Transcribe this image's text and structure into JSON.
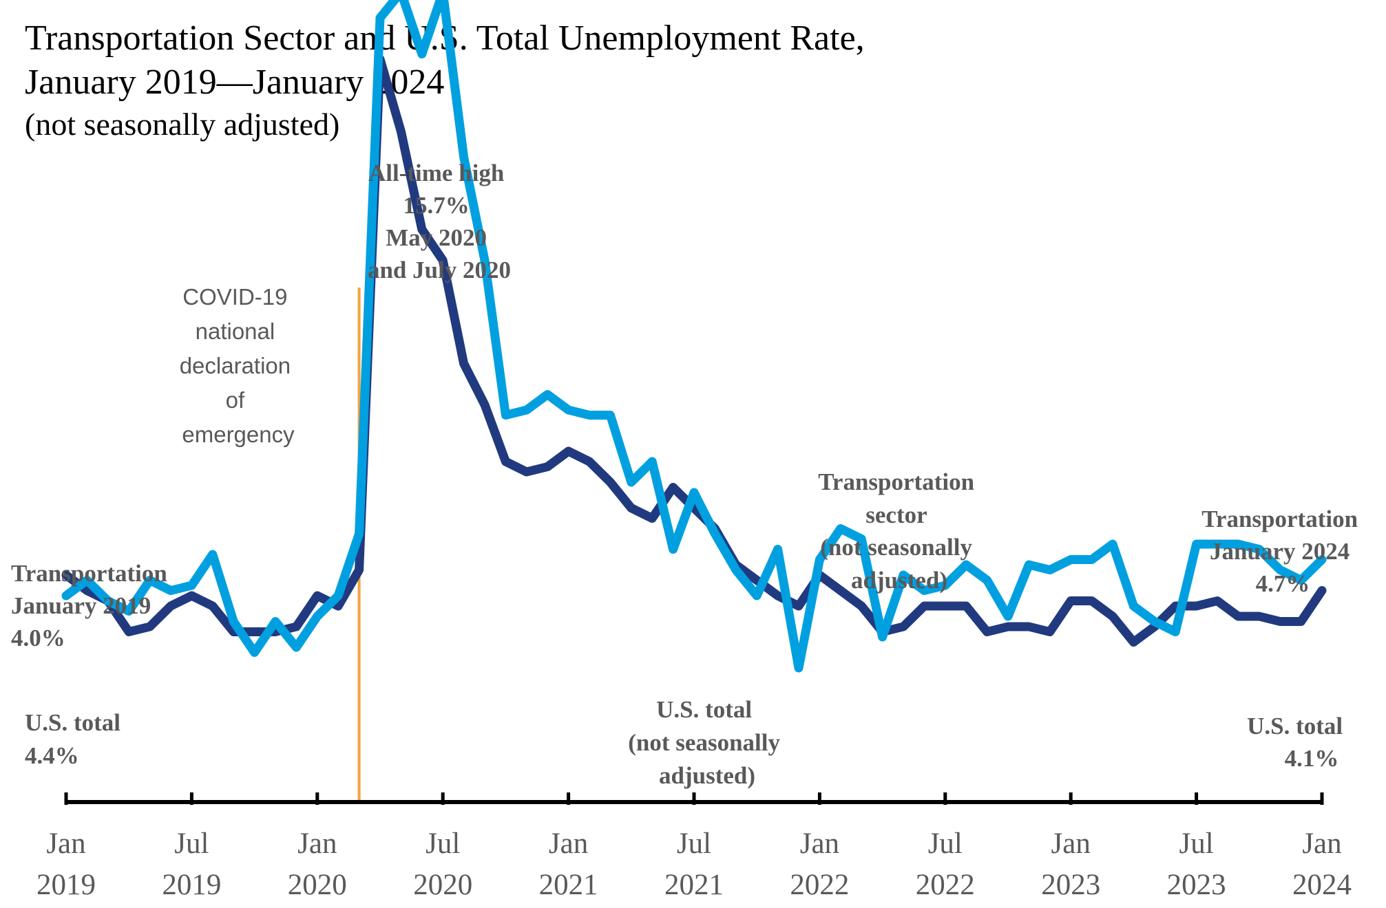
{
  "chart_data": {
    "type": "line",
    "title": "Transportation Sector and U.S. Total Unemployment Rate,",
    "title_line2": "January 2019—January 2024",
    "subtitle": "(not seasonally adjusted)",
    "x": [
      "2019-01",
      "2019-02",
      "2019-03",
      "2019-04",
      "2019-05",
      "2019-06",
      "2019-07",
      "2019-08",
      "2019-09",
      "2019-10",
      "2019-11",
      "2019-12",
      "2020-01",
      "2020-02",
      "2020-03",
      "2020-04",
      "2020-05",
      "2020-06",
      "2020-07",
      "2020-08",
      "2020-09",
      "2020-10",
      "2020-11",
      "2020-12",
      "2021-01",
      "2021-02",
      "2021-03",
      "2021-04",
      "2021-05",
      "2021-06",
      "2021-07",
      "2021-08",
      "2021-09",
      "2021-10",
      "2021-11",
      "2021-12",
      "2022-01",
      "2022-02",
      "2022-03",
      "2022-04",
      "2022-05",
      "2022-06",
      "2022-07",
      "2022-08",
      "2022-09",
      "2022-10",
      "2022-11",
      "2022-12",
      "2023-01",
      "2023-02",
      "2023-03",
      "2023-04",
      "2023-05",
      "2023-06",
      "2023-07",
      "2023-08",
      "2023-09",
      "2023-10",
      "2023-11",
      "2023-12",
      "2024-01"
    ],
    "ylim": [
      0,
      17
    ],
    "series": [
      {
        "name": "Transportation sector (not seasonally adjusted)",
        "color": "#00A0E0",
        "values": [
          4.0,
          4.3,
          3.9,
          3.7,
          4.3,
          4.1,
          4.2,
          4.8,
          3.5,
          2.9,
          3.5,
          3.0,
          3.6,
          4.0,
          5.2,
          15.2,
          15.7,
          14.5,
          15.7,
          12.5,
          10.5,
          7.5,
          7.6,
          7.9,
          7.6,
          7.5,
          7.5,
          6.2,
          6.6,
          4.9,
          6.0,
          5.2,
          4.5,
          4.0,
          4.9,
          2.6,
          4.7,
          5.3,
          5.1,
          3.2,
          4.4,
          4.1,
          4.2,
          4.6,
          4.3,
          3.6,
          4.6,
          4.5,
          4.7,
          4.7,
          5.0,
          3.8,
          3.5,
          3.3,
          5.0,
          5.0,
          5.0,
          4.9,
          4.5,
          4.3,
          4.7
        ]
      },
      {
        "name": "U.S. total (not seasonally adjusted)",
        "color": "#213A7F",
        "values": [
          4.4,
          4.1,
          3.9,
          3.3,
          3.4,
          3.8,
          4.0,
          3.8,
          3.3,
          3.3,
          3.3,
          3.4,
          4.0,
          3.8,
          4.5,
          14.4,
          13.0,
          11.1,
          10.5,
          8.5,
          7.7,
          6.6,
          6.4,
          6.5,
          6.8,
          6.6,
          6.2,
          5.7,
          5.5,
          6.1,
          5.7,
          5.3,
          4.6,
          4.3,
          4.0,
          3.8,
          4.4,
          4.1,
          3.8,
          3.3,
          3.4,
          3.8,
          3.8,
          3.8,
          3.3,
          3.4,
          3.4,
          3.3,
          3.9,
          3.9,
          3.6,
          3.1,
          3.4,
          3.8,
          3.8,
          3.9,
          3.6,
          3.6,
          3.5,
          3.5,
          4.1
        ]
      }
    ],
    "x_ticks": [
      {
        "month": "Jan",
        "year": "2019",
        "index": 0
      },
      {
        "month": "Jul",
        "year": "2019",
        "index": 6
      },
      {
        "month": "Jan",
        "year": "2020",
        "index": 12
      },
      {
        "month": "Jul",
        "year": "2020",
        "index": 18
      },
      {
        "month": "Jan",
        "year": "2021",
        "index": 24
      },
      {
        "month": "Jul",
        "year": "2021",
        "index": 30
      },
      {
        "month": "Jan",
        "year": "2022",
        "index": 36
      },
      {
        "month": "Jul",
        "year": "2022",
        "index": 42
      },
      {
        "month": "Jan",
        "year": "2023",
        "index": 48
      },
      {
        "month": "Jul",
        "year": "2023",
        "index": 54
      },
      {
        "month": "Jan",
        "year": "2024",
        "index": 60
      }
    ],
    "event_line": {
      "index": 14,
      "color": "#F4A33B"
    },
    "annotations": {
      "all_time_high": [
        "All-time high",
        "15.7%",
        "May 2020",
        "and July 2020"
      ],
      "covid": [
        "COVID-19",
        "national",
        "declaration",
        "of",
        "emergency"
      ],
      "trans_start": [
        "Transportation",
        "January 2019",
        "4.0%"
      ],
      "us_start": [
        "U.S. total",
        "4.4%"
      ],
      "trans_sector": [
        "Transportation",
        "sector",
        "(not seasonally",
        "adjusted)"
      ],
      "us_mid": [
        "U.S. total",
        "(not seasonally",
        "adjusted)"
      ],
      "trans_end": [
        "Transportation",
        "January 2024",
        "4.7%"
      ],
      "us_end": [
        "U.S. total",
        "4.1%"
      ]
    }
  }
}
